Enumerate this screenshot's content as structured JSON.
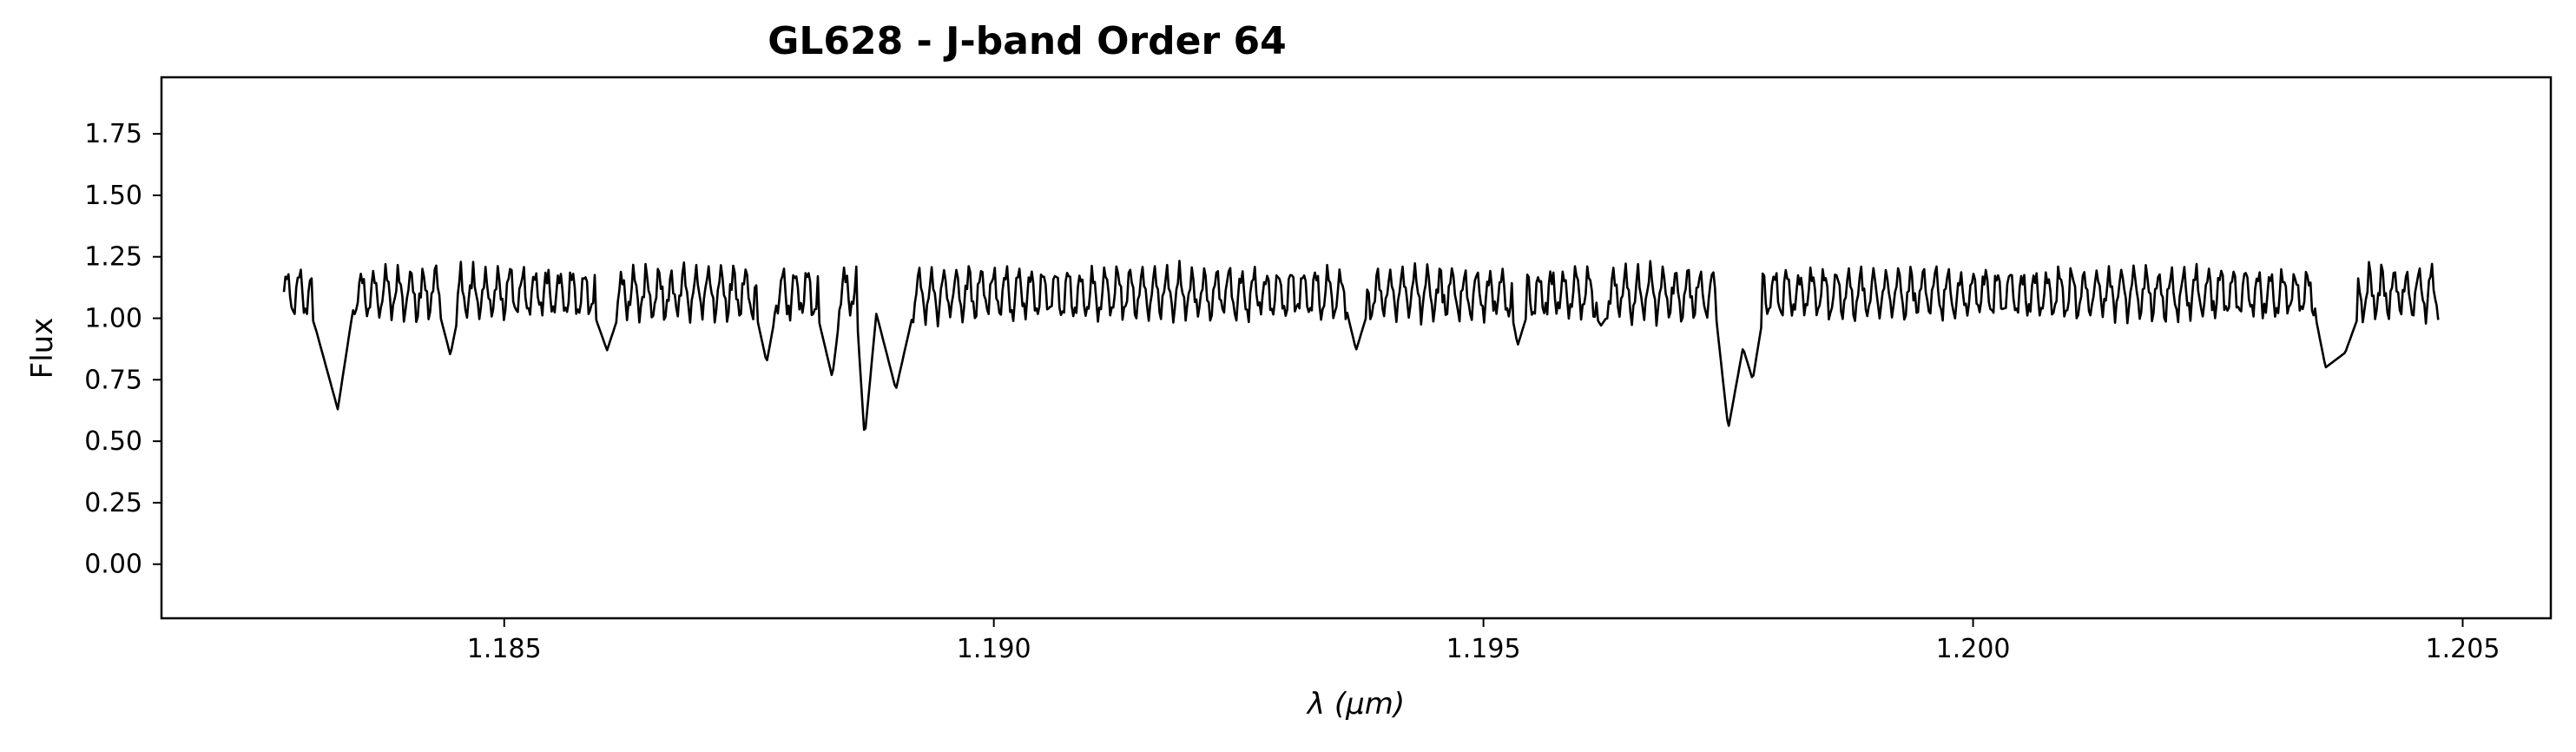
{
  "chart_data": {
    "type": "line",
    "title": "GL628 - J-band Order 64",
    "xlabel": "λ (μm)",
    "ylabel": "Flux",
    "xlim": [
      1.1815,
      1.2059
    ],
    "ylim": [
      -0.22,
      1.98
    ],
    "xticks": [
      1.185,
      1.19,
      1.195,
      1.2,
      1.205
    ],
    "xtick_labels": [
      "1.185",
      "1.190",
      "1.195",
      "1.200",
      "1.205"
    ],
    "yticks": [
      0.0,
      0.25,
      0.5,
      0.75,
      1.0,
      1.25,
      1.5,
      1.75
    ],
    "ytick_labels": [
      "0.00",
      "0.25",
      "0.50",
      "0.75",
      "1.00",
      "1.25",
      "1.50",
      "1.75"
    ],
    "grid": false,
    "series": [
      {
        "color": "#000000",
        "x_range": [
          1.18275,
          1.20475
        ],
        "x": [
          1.18275,
          1.1829,
          1.183,
          1.18308,
          1.1833,
          1.18345,
          1.18365,
          1.1843,
          1.18445,
          1.1846,
          1.1858,
          1.18605,
          1.1863,
          1.1875,
          1.18768,
          1.18785,
          1.1881,
          1.18835,
          1.18848,
          1.1886,
          1.18868,
          1.1888,
          1.189,
          1.18925,
          1.19,
          1.1927,
          1.1935,
          1.1937,
          1.19395,
          1.1952,
          1.19535,
          1.19545,
          1.1958,
          1.1962,
          1.19665,
          1.19735,
          1.1975,
          1.19765,
          1.19775,
          1.1979,
          1.1981,
          1.1995,
          1.2015,
          1.20345,
          1.2036,
          1.2038,
          1.204,
          1.2043,
          1.2045,
          1.20475
        ],
        "y": [
          1.06,
          1.18,
          1.05,
          0.95,
          0.63,
          1.02,
          1.08,
          1.08,
          0.85,
          1.15,
          1.15,
          0.87,
          1.17,
          1.15,
          0.82,
          1.19,
          1.18,
          0.76,
          1.19,
          1.02,
          0.51,
          1.02,
          0.71,
          1.15,
          1.19,
          1.2,
          1.2,
          0.87,
          1.2,
          1.2,
          0.89,
          1.02,
          1.24,
          0.97,
          1.23,
          1.1,
          0.55,
          0.88,
          0.75,
          1.12,
          1.21,
          1.2,
          1.2,
          1.1,
          0.8,
          0.86,
          1.08,
          1.2,
          1.13,
          1.13
        ]
      }
    ],
    "continuum_note": ""
  }
}
